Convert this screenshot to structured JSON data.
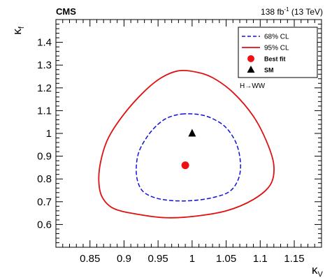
{
  "chart_data": {
    "type": "line",
    "experiment_label": "CMS",
    "lumi_label": "138 fb",
    "lumi_exponent": "-1",
    "lumi_suffix": " (13 TeV)",
    "channel_label": "H→WW",
    "xlabel": "κ",
    "xlabel_sub": "V",
    "ylabel": "κ",
    "ylabel_sub": "f",
    "xlim": [
      0.8,
      1.19
    ],
    "ylim": [
      0.5,
      1.5
    ],
    "xticks": [
      0.85,
      0.9,
      0.95,
      1,
      1.05,
      1.1,
      1.15
    ],
    "xtick_labels": [
      "0.85",
      "0.9",
      "0.95",
      "1",
      "1.05",
      "1.1",
      "1.15"
    ],
    "yticks": [
      0.6,
      0.7,
      0.8,
      0.9,
      1,
      1.1,
      1.2,
      1.3,
      1.4
    ],
    "ytick_labels": [
      "0.6",
      "0.7",
      "0.8",
      "0.9",
      "1",
      "1.1",
      "1.2",
      "1.3",
      "1.4"
    ],
    "grid": false,
    "legend_position": "top-right",
    "legend": [
      {
        "label": "68% CL",
        "kind": "dashed-line",
        "color": "#1010dd"
      },
      {
        "label": "95% CL",
        "kind": "solid-line",
        "color": "#e01010"
      },
      {
        "label": "Best fit",
        "kind": "circle",
        "color": "#ee1111"
      },
      {
        "label": "SM",
        "kind": "triangle",
        "color": "#000000"
      }
    ],
    "series": [
      {
        "name": "68% CL",
        "style": "dashed",
        "color": "#1010dd",
        "points": [
          [
            0.985,
            1.085
          ],
          [
            1.01,
            1.083
          ],
          [
            1.03,
            1.065
          ],
          [
            1.05,
            1.025
          ],
          [
            1.065,
            0.955
          ],
          [
            1.071,
            0.87
          ],
          [
            1.068,
            0.8
          ],
          [
            1.055,
            0.745
          ],
          [
            1.03,
            0.718
          ],
          [
            1.0,
            0.705
          ],
          [
            0.97,
            0.705
          ],
          [
            0.945,
            0.718
          ],
          [
            0.928,
            0.745
          ],
          [
            0.92,
            0.79
          ],
          [
            0.918,
            0.85
          ],
          [
            0.922,
            0.92
          ],
          [
            0.935,
            0.99
          ],
          [
            0.95,
            1.04
          ],
          [
            0.965,
            1.07
          ],
          [
            0.985,
            1.085
          ]
        ]
      },
      {
        "name": "95% CL",
        "style": "solid",
        "color": "#e01010",
        "points": [
          [
            0.98,
            1.275
          ],
          [
            1.005,
            1.27
          ],
          [
            1.03,
            1.245
          ],
          [
            1.06,
            1.18
          ],
          [
            1.09,
            1.075
          ],
          [
            1.11,
            0.96
          ],
          [
            1.12,
            0.86
          ],
          [
            1.115,
            0.775
          ],
          [
            1.09,
            0.71
          ],
          [
            1.05,
            0.66
          ],
          [
            1.0,
            0.635
          ],
          [
            0.96,
            0.63
          ],
          [
            0.92,
            0.645
          ],
          [
            0.885,
            0.67
          ],
          [
            0.868,
            0.72
          ],
          [
            0.863,
            0.79
          ],
          [
            0.866,
            0.88
          ],
          [
            0.877,
            0.98
          ],
          [
            0.9,
            1.085
          ],
          [
            0.93,
            1.185
          ],
          [
            0.955,
            1.245
          ],
          [
            0.98,
            1.275
          ]
        ]
      }
    ],
    "best_fit": {
      "x": 0.99,
      "y": 0.86,
      "color": "#ee1111"
    },
    "sm": {
      "x": 1.0,
      "y": 1.0,
      "color": "#000000"
    }
  }
}
